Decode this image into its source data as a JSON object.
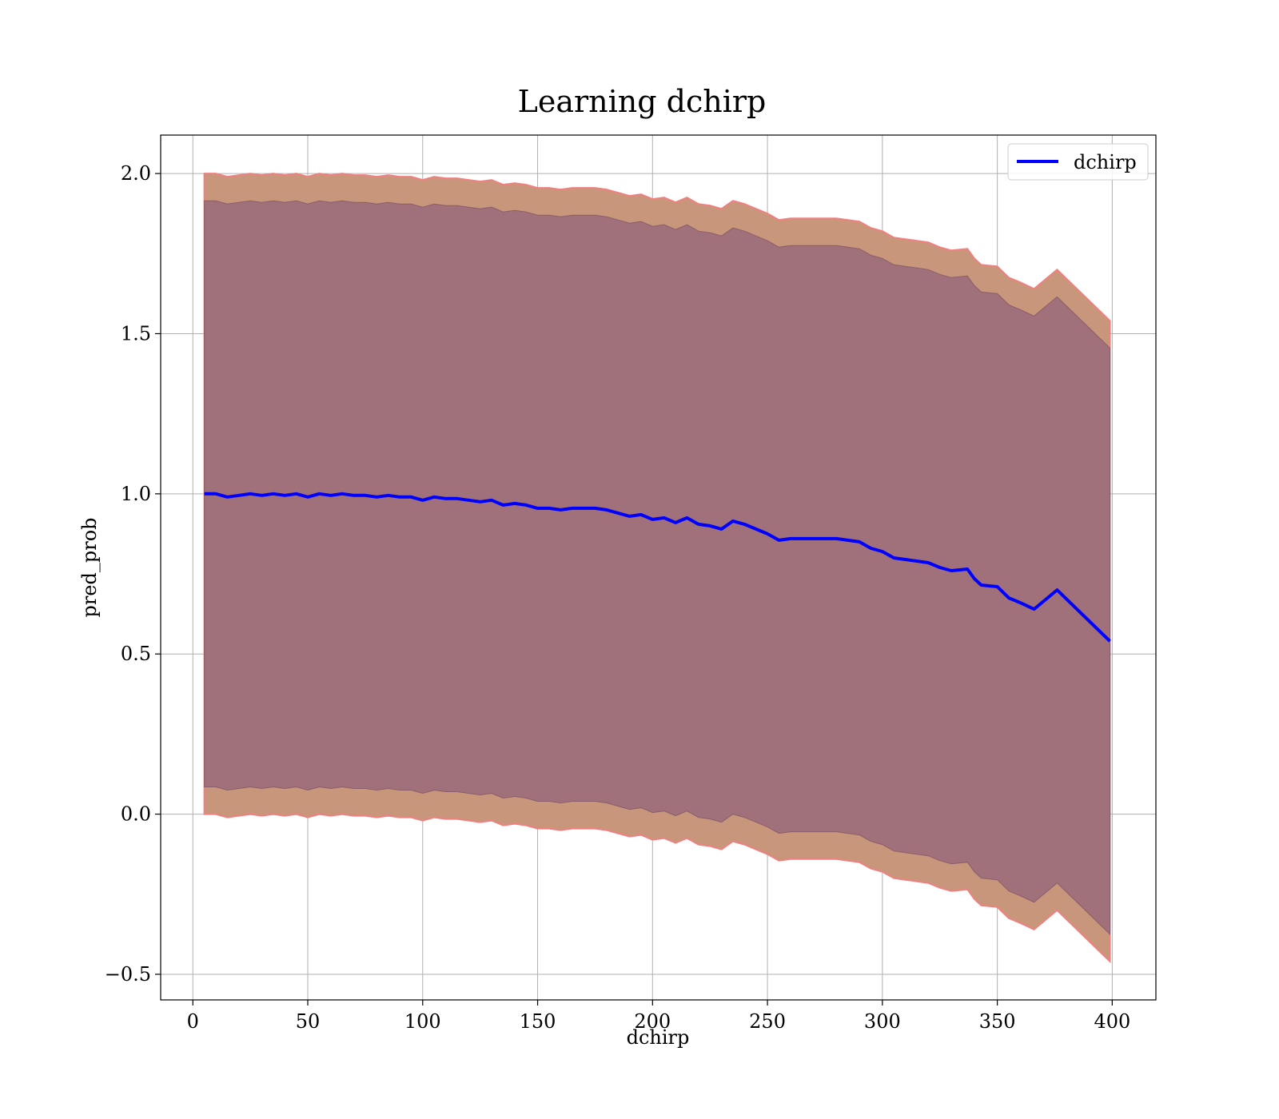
{
  "chart_data": {
    "type": "line",
    "title": "Learning dchirp",
    "xlabel": "dchirp",
    "ylabel": "pred_prob",
    "xlim": [
      -14,
      419
    ],
    "ylim": [
      -0.58,
      2.12
    ],
    "xticks": [
      0,
      50,
      100,
      150,
      200,
      250,
      300,
      350,
      400
    ],
    "xtick_labels": [
      "0",
      "50",
      "100",
      "150",
      "200",
      "250",
      "300",
      "350",
      "400"
    ],
    "yticks": [
      -0.5,
      0.0,
      0.5,
      1.0,
      1.5,
      2.0
    ],
    "ytick_labels": [
      "−0.5",
      "0.0",
      "0.5",
      "1.0",
      "1.5",
      "2.0"
    ],
    "grid": true,
    "legend_position": "top-right",
    "colors": {
      "line": "#0000ff",
      "outer_band": "#c8967b",
      "outer_band_edge": "#f08080",
      "inner_band": "#a0717a",
      "grid": "#b0b0b0"
    },
    "series": [
      {
        "name": "dchirp",
        "x": [
          5,
          10,
          15,
          20,
          25,
          30,
          35,
          40,
          45,
          50,
          55,
          60,
          65,
          70,
          75,
          80,
          85,
          90,
          95,
          100,
          105,
          110,
          115,
          120,
          125,
          130,
          135,
          140,
          145,
          150,
          155,
          160,
          165,
          170,
          175,
          180,
          185,
          190,
          195,
          200,
          205,
          210,
          215,
          220,
          225,
          230,
          235,
          240,
          245,
          250,
          255,
          260,
          265,
          270,
          275,
          280,
          285,
          290,
          295,
          300,
          305,
          310,
          315,
          320,
          325,
          330,
          337,
          340,
          343,
          350,
          355,
          360,
          366,
          376,
          399
        ],
        "y": [
          1.0,
          1.0,
          0.99,
          0.995,
          1.0,
          0.995,
          1.0,
          0.995,
          1.0,
          0.99,
          1.0,
          0.995,
          1.0,
          0.995,
          0.995,
          0.99,
          0.995,
          0.99,
          0.99,
          0.98,
          0.99,
          0.985,
          0.985,
          0.98,
          0.975,
          0.98,
          0.965,
          0.97,
          0.965,
          0.955,
          0.955,
          0.95,
          0.955,
          0.955,
          0.955,
          0.95,
          0.94,
          0.93,
          0.935,
          0.92,
          0.925,
          0.91,
          0.925,
          0.905,
          0.9,
          0.89,
          0.915,
          0.905,
          0.89,
          0.875,
          0.855,
          0.86,
          0.86,
          0.86,
          0.86,
          0.86,
          0.855,
          0.85,
          0.83,
          0.82,
          0.8,
          0.795,
          0.79,
          0.785,
          0.77,
          0.76,
          0.765,
          0.735,
          0.715,
          0.71,
          0.675,
          0.66,
          0.64,
          0.7,
          0.54
        ]
      }
    ],
    "bands": {
      "outer_offset": [
        1.0,
        1.0,
        1.0,
        1.0,
        1.0,
        1.0,
        1.0,
        1.0,
        1.0,
        1.0,
        1.0,
        1.0,
        1.0,
        1.0,
        1.0,
        1.0,
        1.0,
        1.0,
        1.0,
        1.0,
        1.0,
        1.0,
        1.0,
        1.0,
        1.0,
        1.0,
        1.0,
        1.0,
        1.0,
        1.0,
        1.0,
        1.0,
        1.0,
        1.0,
        1.0,
        1.0,
        1.0,
        1.0,
        1.0,
        1.0,
        1.0,
        1.0,
        1.0,
        1.0,
        1.0,
        1.0,
        1.0,
        1.0,
        1.0,
        1.0,
        1.0,
        1.0,
        1.0,
        1.0,
        1.0,
        1.0,
        1.0,
        1.0,
        1.0,
        1.0,
        1.0,
        1.0,
        1.0,
        1.0,
        1.0,
        1.0,
        1.0,
        1.0,
        1.0,
        1.0,
        1.0,
        1.0,
        1.0,
        1.0,
        1.0
      ],
      "inner_offset": [
        0.915,
        0.915,
        0.915,
        0.915,
        0.915,
        0.915,
        0.915,
        0.915,
        0.915,
        0.915,
        0.915,
        0.915,
        0.915,
        0.915,
        0.915,
        0.915,
        0.915,
        0.915,
        0.915,
        0.915,
        0.915,
        0.915,
        0.915,
        0.915,
        0.915,
        0.915,
        0.915,
        0.915,
        0.915,
        0.915,
        0.915,
        0.915,
        0.915,
        0.915,
        0.915,
        0.915,
        0.915,
        0.915,
        0.915,
        0.915,
        0.915,
        0.915,
        0.915,
        0.915,
        0.915,
        0.915,
        0.915,
        0.915,
        0.915,
        0.915,
        0.915,
        0.915,
        0.915,
        0.915,
        0.915,
        0.915,
        0.915,
        0.915,
        0.915,
        0.915,
        0.915,
        0.915,
        0.915,
        0.915,
        0.915,
        0.915,
        0.915,
        0.915,
        0.915,
        0.915,
        0.915,
        0.915,
        0.915,
        0.915,
        0.915
      ]
    }
  }
}
